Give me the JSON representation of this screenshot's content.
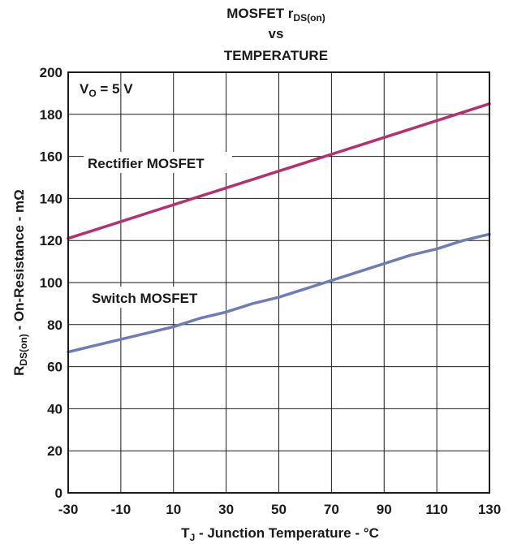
{
  "chart_data": {
    "type": "line",
    "title": {
      "line1_main": "MOSFET r",
      "line1_sub": "DS(on)",
      "line2": "vs",
      "line3": "TEMPERATURE"
    },
    "xlabel": {
      "main": "T",
      "sub": "J",
      "rest": " - Junction Temperature - °C"
    },
    "ylabel": {
      "main": "R",
      "sub": "DS(on)",
      "rest": " - On-Resistance - mΩ"
    },
    "xlim": [
      -30,
      130
    ],
    "ylim": [
      0,
      200
    ],
    "x_ticks": [
      -30,
      -10,
      10,
      30,
      50,
      70,
      90,
      110,
      130
    ],
    "y_ticks": [
      0,
      20,
      40,
      60,
      80,
      100,
      120,
      140,
      160,
      180,
      200
    ],
    "grid": true,
    "annotation": {
      "main": "V",
      "sub": "O",
      "rest": " = 5 V"
    },
    "series": [
      {
        "name": "Rectifier MOSFET",
        "color": "#b5306f",
        "x": [
          -30,
          -20,
          -10,
          0,
          10,
          20,
          30,
          40,
          50,
          60,
          70,
          80,
          90,
          100,
          110,
          120,
          130
        ],
        "y": [
          121,
          125,
          129,
          133,
          137,
          141,
          145,
          149,
          153,
          157,
          161,
          165,
          169,
          173,
          177,
          181,
          185
        ]
      },
      {
        "name": "Switch MOSFET",
        "color": "#6d7db5",
        "x": [
          -30,
          -20,
          -10,
          0,
          10,
          20,
          30,
          40,
          50,
          60,
          70,
          80,
          90,
          100,
          110,
          120,
          130
        ],
        "y": [
          67,
          70,
          73,
          76,
          79,
          83,
          86,
          90,
          93,
          97,
          101,
          105,
          109,
          113,
          116,
          120,
          123
        ]
      }
    ]
  }
}
